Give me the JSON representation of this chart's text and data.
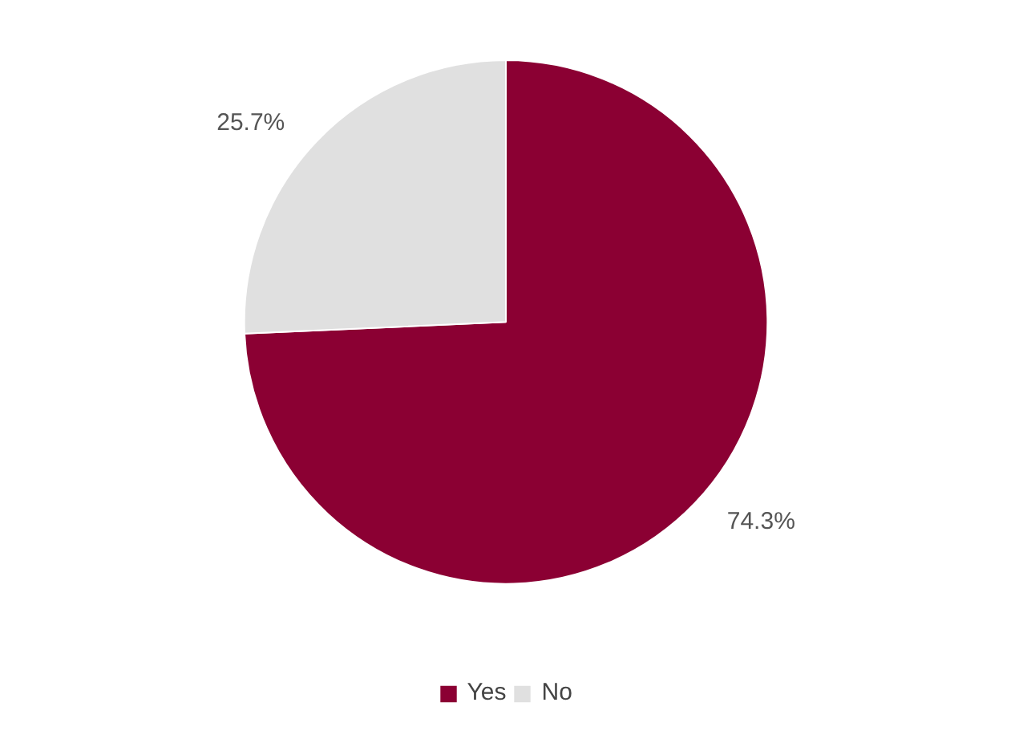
{
  "chart_data": {
    "type": "pie",
    "categories": [
      "Yes",
      "No"
    ],
    "values": [
      74.3,
      25.7
    ],
    "colors": [
      "#8b0033",
      "#e0e0e0"
    ],
    "value_labels": [
      "74.3%",
      "25.7%"
    ],
    "legend": "bottom"
  }
}
